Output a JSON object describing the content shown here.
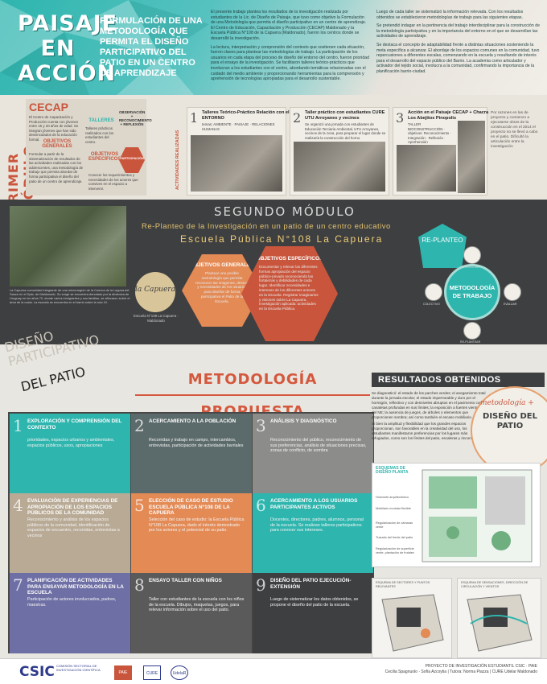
{
  "header": {
    "title_lines": [
      "PAISAJE",
      "EN",
      "ACCIÓN"
    ],
    "subtitle": "FORMULACIÓN DE UNA METODOLOGÍA QUE PERMITA EL DISEÑO PARTICIPATIVO DEL PATIO EN UN CENTRO DE APRENDIZAJE",
    "intro_1": "El presente trabajo plantea los resultados de la investigación realizada por estudiantes de la Lic. de Diseño de Paisaje, que tuvo como objetivo la Formulación de una Metodología que permita el diseño participativo en un centro de aprendizaje. El Centro de Educación, Capacitación y Producción (CECAP) Maldonado y la Escuela Pública N°108 de la Capuera (Maldonado), fueron los centros donde se desarrolló la investigación.",
    "intro_2": "La lectura, interpretación y comprensión del contexto que sostienen cada situación, fueron claves para plantear las metodologías de trabajo. La participación de los usuarios en cada etapa del proceso de diseño del entorno del centro, fueron prioridad para el ensayo de la investigación. Se facilitaron talleres teórico-prácticos que involucran a los estudiantes con el centro, abordando temáticas relacionadas con el cuidado del medio ambiente y proporcionando herramientas para la comprensión y aprehensión de tecnologías apropiadas para el desarrollo sustentable.",
    "intro_3": "Luego de cada taller se sistematizó la información relevada. Con los resultados obtenidos se establecieron metodologías de trabajo para las siguientes etapas.",
    "intro_4": "Se pretendió indagar en la pertinencia del trabajo interdisciplinar para la construcción de la metodología participativa y en la importancia del entorno en el que se desarrollan las actividades de aprendizaje.",
    "intro_5": "Se destaca el concepto de adaptabilidad frente a distintas situaciones sosteniendo la meta específica a alcanzar. El abordaje de los espacios comunes en la comunidad, tuvo repercusiones a diferentes escalas, comenzando en la escuela y resultando de interés para el desarrollo del espacio público del Barrio. La academia como articulador y activador del tejido social, involucra a la comunidad, confirmando la importancia de la planificación barrio-ciudad."
  },
  "module1": {
    "label": "PRIMER MÓDULO",
    "cecap_title": "CECAP",
    "cecap_text": "El Centro de Capacitación y Producción cuenta con jóvenes entre 15 y 20 años de edad. Se integran jóvenes que han sido desvinculados de la educación formal.",
    "talleres_h": "TALLERES",
    "talleres_text": "Talleres prácticos realizados con los estudiantes del centro.",
    "obs_h": "OBSERVACIÓN + RECONOCIMIENTO + REFLEXIÓN",
    "obj_gen_h": "OBJETIVOS GENERALES",
    "obj_gen_text": "Formular a partir de la sistematización de resultados de las actividades realizadas con los adolescentes, una metodología de trabajo que permita abordar de forma participativa el diseño del patio de un centro de aprendizaje.",
    "obj_esp_h": "OBJETIVOS ESPECÍFICOS",
    "obj_esp_text": "Conocer los requerimientos y necesidades de los actores que conviven en el espacio a intervenir.",
    "participacion": "PARTICIPACIÓN",
    "actividades": "ACTIVIDADES REALIZADAS",
    "steps": [
      {
        "num": "1",
        "title": "Talleres Teórico-Práctico Relación con el ENTORNO",
        "sub": "temas: AMBIENTE · PAISAJE · RELACIONES HUMANAS"
      },
      {
        "num": "2",
        "title": "Taller práctico con estudiantes CURE UTU Arroyanes y vecinos",
        "sub": "Se organizó una jornada con estudiantes de Educación Terciaria Ambiental, UTU Arroyanes, vecinos de la zona, para preparar el lugar donde se realizaría la construcción del horno."
      },
      {
        "num": "3",
        "title": "Acción en el Paisaje CECAP + Chacra Los Abejitos Pinopolis",
        "sub": "TALLER BIOCONSTRUCCIÓN · objetivos: Reconocimiento · Integración · Reflexión · Aprehensión"
      }
    ],
    "side_note": "Por razones en las de proyecto y comienzo a ejecutarse obras de la construcción en el 2014 el proyecto no se llevó a cabo en el patio. Dificultó la articulación entre la investigación"
  },
  "module2": {
    "title": "SEGUNDO MÓDULO",
    "subtitle": "Re-Planteo de la Investigación en un patio de un centro educativo",
    "school": "Escuela Pública N°108 La Capuera",
    "context": "La Capuera comunidad integrante de una microrregión de la Cuenca de la Laguna del Sauce en el Dpto. de Maldonado. Su surgir se encuentra denotado por la dinámica de Uruguay en los años 70, donde varios inmigrantes y sus familias, se afincaron sobre el área de la costa. La escuela se encuentra en el barrio sobre la ruta 10.",
    "capuera": "la Capuera",
    "capuera_sub": "Escuela N°108 La Capuera · Maldonado",
    "replanteo": "RE-PLANTEO",
    "obj_gen_h": "OBJETIVOS GENERALES",
    "obj_gen_text": "Plantear una posible metodología que permita reconocer las imagenes, deseos y necesidades de los usuarios para diseñar de forma participativa el Patio de la Escuela.",
    "obj_esp_h": "OBJETIVOS ESPECÍFICOS",
    "obj_esp_text": "Documentar y relevar las diferentes formas apropiación del espacio público-privado reconociendo las fortalezas y debilidades de cada lugar. Identificar necesidades e intereses de los diferentes actores en la Escuela. Registrar imaginarios y visiones sobre La Capuera. Investigación aplicada: actividades en la Escuela Pública.",
    "met_circle": "METODOLOGÍA DE TRABAJO",
    "tools": [
      "PROYECTAR",
      "EVALUAR",
      "RE-PLANTEAR",
      "COLECTIVO"
    ]
  },
  "dp_label": "DISEÑO PARTICIPATIVO",
  "dp_label2": "DEL PATIO",
  "metodologia_title": "METODOLOGÍA PROPUESTA",
  "cells": [
    {
      "num": "1",
      "title": "EXPLORACIÓN Y COMPRENSIÓN DEL CONTEXTO",
      "body": "prioridades, espacios urbanos y ambientales, espacios públicos, usos, apropiaciones",
      "color": "#2eb5ae"
    },
    {
      "num": "2",
      "title": "ACERCAMIENTO A LA POBLACIÓN",
      "body": "Recorridas y trabajo en campo, intercambios, entrevistas, participación de actividades barriales",
      "color": "#5b6a6a"
    },
    {
      "num": "3",
      "title": "ANÁLISIS Y DIAGNÓSTICO",
      "body": "Reconocimiento del público, reconocimiento de sus preferencias, análisis de situaciones precisas, zonas de conflicto, de sombra",
      "color": "#8c8c8a"
    },
    {
      "num": "4",
      "title": "EVALUACIÓN DE EXPERIENCIAS DE APROPIACIÓN DE LOS ESPACIOS PÚBLICOS DE LA COMUNIDAD",
      "body": "Reconocimiento y análisis de los espacios públicos de la comunidad, identificación de espacios de encuentro, recorridas, entrevistas a vecinos",
      "color": "#b8aa95"
    },
    {
      "num": "5",
      "title": "ELECCIÓN DE CASO DE ESTUDIO ESCUELA PÚBLICA N°108 DE LA CAPUERA",
      "body": "Selección del caso de estudio: la Escuela Pública N°108 La Capuera, dado el interés demostrado por los actores y el potencial de su patio.",
      "color": "#e38a55"
    },
    {
      "num": "6",
      "title": "ACERCAMIENTO A LOS USUARIOS PARTICIPANTES ACTIVOS",
      "body": "Docentes, directores, padres, alumnos, personal de la escuela. Se realizan talleres participativos para conocer sus intereses.",
      "color": "#2eb5ae"
    },
    {
      "num": "7",
      "title": "PLANIFICACIÓN DE ACTIVIDADES PARA ENSAYAR METODOLOGÍA EN LA ESCUELA",
      "body": "Participación de actores involucrados, padres, maestras.",
      "color": "#6e6fa4"
    },
    {
      "num": "8",
      "title": "ENSAYO TALLER CON NIÑOS",
      "body": "Taller con estudiantes de la escuela con los niños de la escuela. Dibujos, maquetas, juegos, para relevar información sobre el uso del patio.",
      "color": "#5a5a5a"
    },
    {
      "num": "9",
      "title": "DISEÑO DEL PATIO EJECUCIÓN-EXTENSIÓN",
      "body": "Luego de sistematizar los datos obtenidos, se propone el diseño del patio de la escuela.",
      "color": "#3e3f40"
    }
  ],
  "resultados": {
    "title": "RESULTADOS OBTENIDOS",
    "p1": "Se diagnosticó: el estado de los parches verdes; el anegamiento total durante la jornada escolar; el estado impermeable y duro por el hormigón, reflectivo y con desniveles abruptos en el pavimento con canaletas profundas en sus límites; la exposición a fuertes vientos del NE; la ausencia de juegos, de árboles o elementos que proporcionen sombra; así como también el escaso mobiliario.",
    "p2": "Si bien la amplitud y flexibilidad que los grandes espacios proporcionan, son favorables en la creatividad del uso, los estudiantes manifestaron preferencias por los lugares más refugiados, como son los límites del patio, escaleras y rincones.",
    "circle_a": "metodología +",
    "circle_b": "DISEÑO DEL PATIO",
    "plan_title": "ESQUEMAS DE DISEÑO PLANTA",
    "plan_labels": [
      "Horizonte arquitectónico",
      "Mobiliario modular flexible",
      "Regularización de cámaras verde",
      "Trazado del frente del patio",
      "Regularización de superficie verde, plantación de frutales"
    ],
    "esq1": "ESQUEMA DE SECTORES Y PUNTOS RELEVANTES",
    "esq2": "ESQUEMA DE SENSACIONES, DIRECCIÓN DE CIRCULACIÓN Y VIENTOS"
  },
  "footer": {
    "csic": "CSIC",
    "csic_sub": "Comisión Sectorial de Investigación Científica",
    "logos": [
      "PAIE",
      "CURE",
      "UdelaR"
    ],
    "project": "PROYECTO DE INVESTIGACIÓN ESTUDIANTIL  CSIC · PAIE",
    "authors": "Cecilia Spagnuolo · Sofía Azcoytia | Tutora: Norma Piazza | CURE Udelar Maldonado"
  }
}
